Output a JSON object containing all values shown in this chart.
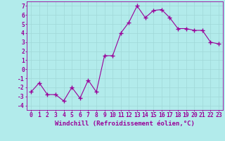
{
  "x": [
    0,
    1,
    2,
    3,
    4,
    5,
    6,
    7,
    8,
    9,
    10,
    11,
    12,
    13,
    14,
    15,
    16,
    17,
    18,
    19,
    20,
    21,
    22,
    23
  ],
  "y": [
    -2.5,
    -1.5,
    -2.8,
    -2.8,
    -3.5,
    -2.0,
    -3.2,
    -1.2,
    -2.5,
    1.5,
    1.5,
    4.0,
    5.2,
    7.0,
    5.7,
    6.5,
    6.6,
    5.7,
    4.5,
    4.5,
    4.3,
    4.3,
    3.0,
    2.8
  ],
  "line_color": "#990099",
  "marker": "+",
  "marker_color": "#990099",
  "bg_color": "#b2ebeb",
  "grid_color": "#c8e8e8",
  "title": "",
  "xlabel": "Windchill (Refroidissement éolien,°C)",
  "ylabel": "",
  "xlim": [
    -0.5,
    23.5
  ],
  "ylim": [
    -4.5,
    7.5
  ],
  "xticks": [
    0,
    1,
    2,
    3,
    4,
    5,
    6,
    7,
    8,
    9,
    10,
    11,
    12,
    13,
    14,
    15,
    16,
    17,
    18,
    19,
    20,
    21,
    22,
    23
  ],
  "yticks": [
    -4,
    -3,
    -2,
    -1,
    0,
    1,
    2,
    3,
    4,
    5,
    6,
    7
  ],
  "tick_color": "#990099",
  "axis_color": "#990099",
  "xlabel_color": "#990099",
  "label_fontsize": 6.5,
  "tick_fontsize": 5.8
}
